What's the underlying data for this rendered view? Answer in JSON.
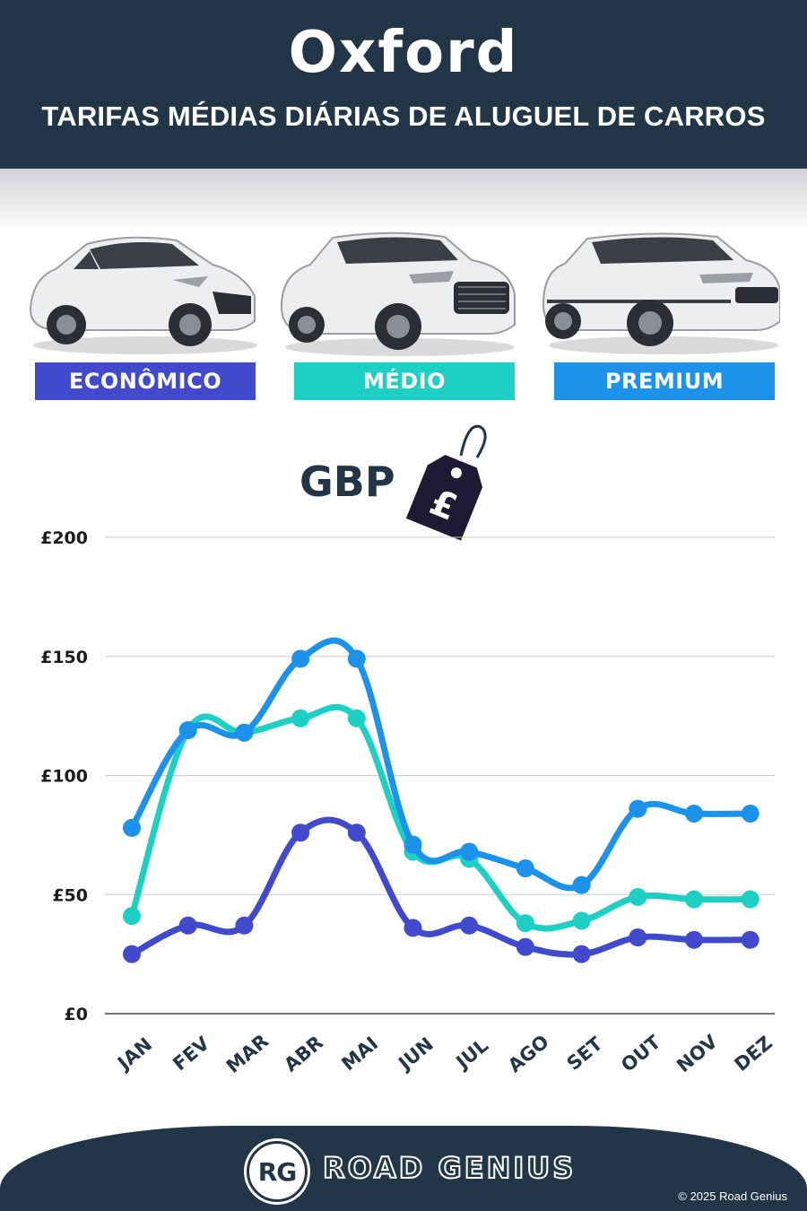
{
  "header": {
    "city": "Oxford",
    "subtitle": "TARIFAS MÉDIAS DIÁRIAS DE ALUGUEL DE CARROS"
  },
  "categories": [
    {
      "label": "ECONÔMICO",
      "color": "#4149cc"
    },
    {
      "label": "MÉDIO",
      "color": "#1ecfc4"
    },
    {
      "label": "PREMIUM",
      "color": "#1d92ea"
    }
  ],
  "currency": {
    "label": "GBP",
    "symbol": "£"
  },
  "chart_data": {
    "type": "line",
    "categories": [
      "JAN",
      "FEV",
      "MAR",
      "ABR",
      "MAI",
      "JUN",
      "JUL",
      "AGO",
      "SET",
      "OUT",
      "NOV",
      "DEZ"
    ],
    "series": [
      {
        "name": "ECONÔMICO",
        "color": "#4149cc",
        "values": [
          25,
          37,
          37,
          76,
          76,
          36,
          37,
          28,
          25,
          32,
          31,
          31
        ]
      },
      {
        "name": "MÉDIO",
        "color": "#1ecfc4",
        "values": [
          41,
          119,
          118,
          124,
          124,
          68,
          65,
          38,
          39,
          49,
          48,
          48
        ]
      },
      {
        "name": "PREMIUM",
        "color": "#1d92ea",
        "values": [
          78,
          119,
          118,
          149,
          149,
          71,
          68,
          61,
          54,
          86,
          84,
          84
        ]
      }
    ],
    "ylim": [
      0,
      200
    ],
    "yticks": [
      0,
      50,
      100,
      150,
      200
    ],
    "ytick_labels": [
      "£0",
      "£50",
      "£100",
      "£150",
      "£200"
    ],
    "grid": true
  },
  "footer": {
    "logo": "RG",
    "brand": "ROAD GENIUS",
    "copyright": "© 2025 Road Genius"
  }
}
